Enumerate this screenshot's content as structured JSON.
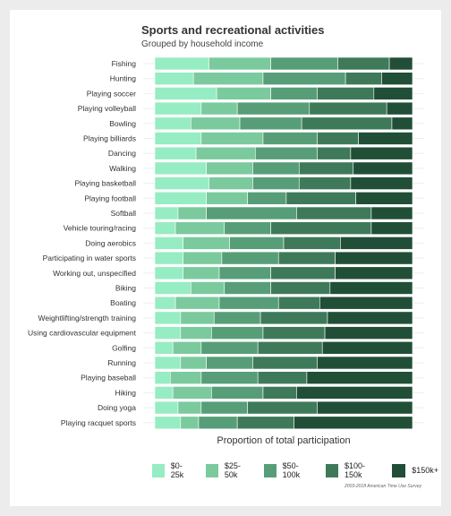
{
  "chart_data": {
    "type": "bar",
    "orientation": "horizontal",
    "stacked": true,
    "normalized": true,
    "title": "Sports and recreational activities",
    "subtitle": "Grouped by household income",
    "xlabel": "Proportion of total participation",
    "ylabel": "",
    "xlim": [
      0,
      1
    ],
    "grid": false,
    "legend_position": "bottom",
    "caption": "2003-2018 American Time Use Survey",
    "categories": [
      "Fishing",
      "Hunting",
      "Playing soccer",
      "Playing volleyball",
      "Bowling",
      "Playing billiards",
      "Dancing",
      "Walking",
      "Playing basketball",
      "Playing football",
      "Softball",
      "Vehicle touring/racing",
      "Doing aerobics",
      "Participating in water sports",
      "Working out, unspecified",
      "Biking",
      "Boating",
      "Weightlifting/strength training",
      "Using cardiovascular equipment",
      "Golfing",
      "Running",
      "Playing baseball",
      "Hiking",
      "Doing yoga",
      "Playing racquet sports"
    ],
    "series": [
      {
        "name": "$0-25k",
        "color": "#96ecc3",
        "values": [
          0.21,
          0.15,
          0.24,
          0.18,
          0.14,
          0.18,
          0.16,
          0.2,
          0.21,
          0.2,
          0.09,
          0.08,
          0.11,
          0.11,
          0.11,
          0.14,
          0.08,
          0.1,
          0.1,
          0.07,
          0.1,
          0.06,
          0.07,
          0.09,
          0.1
        ]
      },
      {
        "name": "$25-50k",
        "color": "#7bca9e",
        "values": [
          0.24,
          0.27,
          0.21,
          0.14,
          0.19,
          0.24,
          0.23,
          0.18,
          0.17,
          0.16,
          0.11,
          0.19,
          0.18,
          0.15,
          0.14,
          0.13,
          0.17,
          0.13,
          0.12,
          0.11,
          0.1,
          0.12,
          0.15,
          0.09,
          0.07
        ]
      },
      {
        "name": "$50-100k",
        "color": "#579e78",
        "values": [
          0.26,
          0.32,
          0.18,
          0.28,
          0.24,
          0.21,
          0.24,
          0.18,
          0.18,
          0.15,
          0.35,
          0.18,
          0.21,
          0.22,
          0.2,
          0.18,
          0.23,
          0.18,
          0.2,
          0.22,
          0.18,
          0.22,
          0.2,
          0.18,
          0.15
        ]
      },
      {
        "name": "$100-150k",
        "color": "#3e7a5a",
        "values": [
          0.2,
          0.14,
          0.22,
          0.3,
          0.35,
          0.16,
          0.13,
          0.21,
          0.2,
          0.27,
          0.29,
          0.39,
          0.22,
          0.22,
          0.25,
          0.23,
          0.16,
          0.26,
          0.24,
          0.25,
          0.25,
          0.19,
          0.13,
          0.27,
          0.22
        ]
      },
      {
        "name": "$150k+",
        "color": "#214e37",
        "values": [
          0.09,
          0.12,
          0.15,
          0.1,
          0.08,
          0.21,
          0.24,
          0.23,
          0.24,
          0.22,
          0.16,
          0.16,
          0.28,
          0.3,
          0.3,
          0.32,
          0.36,
          0.33,
          0.34,
          0.35,
          0.37,
          0.41,
          0.45,
          0.37,
          0.46
        ]
      }
    ]
  }
}
